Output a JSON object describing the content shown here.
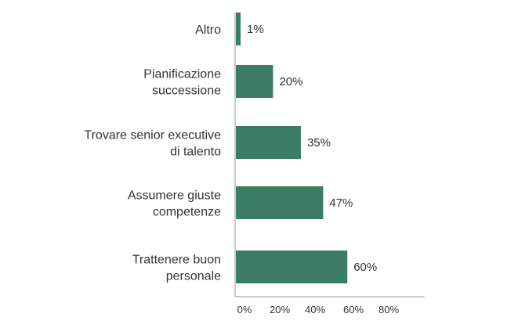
{
  "chart_data": {
    "type": "bar",
    "orientation": "horizontal",
    "categories": [
      [
        "Altro"
      ],
      [
        "Pianificazione",
        "successione"
      ],
      [
        "Trovare senior executive",
        "di talento"
      ],
      [
        "Assumere giuste",
        "competenze"
      ],
      [
        "Trattenere buon",
        "personale"
      ]
    ],
    "values": [
      1,
      20,
      35,
      47,
      60
    ],
    "value_labels": [
      "1%",
      "20%",
      "35%",
      "47%",
      "60%"
    ],
    "xlim": [
      0,
      80
    ],
    "xticks": [
      "0%",
      "20%",
      "40%",
      "60%",
      "80%"
    ],
    "bar_color": "#3a7d62",
    "axis_color": "#999999",
    "grid": false,
    "title": "",
    "xlabel": "",
    "ylabel": ""
  }
}
